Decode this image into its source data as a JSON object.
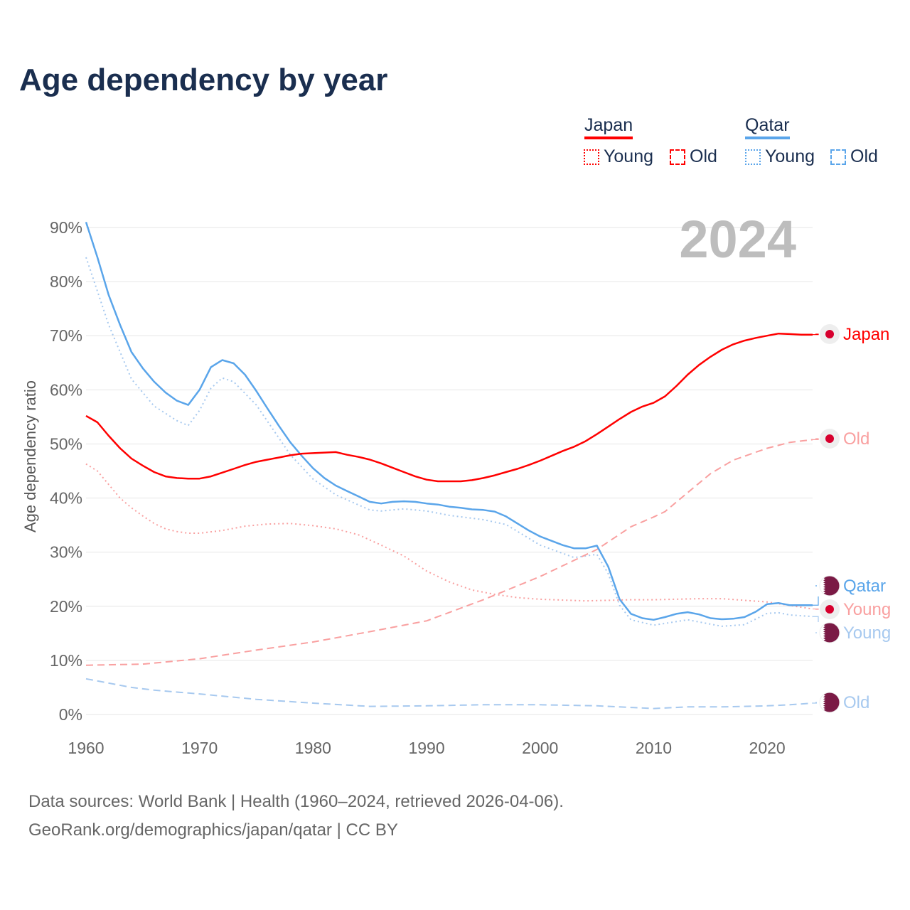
{
  "title": "Age dependency by year",
  "legend": {
    "groups": [
      {
        "country": "Japan",
        "color": "#ff0000",
        "items": [
          "Young",
          "Old"
        ]
      },
      {
        "country": "Qatar",
        "color": "#5aa5ea",
        "items": [
          "Young",
          "Old"
        ]
      }
    ]
  },
  "footer": {
    "line1": "Data sources: World Bank | Health (1960–2024, retrieved 2026-04-06).",
    "line2": "GeoRank.org/demographics/japan/qatar | CC BY"
  },
  "chart_data": {
    "type": "line",
    "title": "Age dependency by year",
    "ylabel": "Age dependency ratio",
    "xlabel": "",
    "year_label": "2024",
    "xlim": [
      1960,
      2024
    ],
    "ylim": [
      0,
      90
    ],
    "x_ticks": [
      "1960",
      "1970",
      "1980",
      "1990",
      "2000",
      "2010",
      "2020"
    ],
    "y_ticks": [
      "0%",
      "10%",
      "20%",
      "30%",
      "40%",
      "50%",
      "60%",
      "70%",
      "80%",
      "90%"
    ],
    "grid": true,
    "series": [
      {
        "name": "Japan",
        "end_label": "Japan",
        "country": "Japan",
        "color": "#ff0000",
        "style": "solid",
        "x": [
          1960,
          1961,
          1962,
          1963,
          1964,
          1965,
          1966,
          1967,
          1968,
          1969,
          1970,
          1971,
          1972,
          1973,
          1974,
          1975,
          1976,
          1977,
          1978,
          1979,
          1980,
          1981,
          1982,
          1983,
          1984,
          1985,
          1986,
          1987,
          1988,
          1989,
          1990,
          1991,
          1992,
          1993,
          1994,
          1995,
          1996,
          1997,
          1998,
          1999,
          2000,
          2001,
          2002,
          2003,
          2004,
          2005,
          2006,
          2007,
          2008,
          2009,
          2010,
          2011,
          2012,
          2013,
          2014,
          2015,
          2016,
          2017,
          2018,
          2019,
          2020,
          2021,
          2022,
          2023,
          2024
        ],
        "y": [
          55.2,
          54,
          51.5,
          49.2,
          47.3,
          46,
          44.8,
          44,
          43.7,
          43.6,
          43.6,
          44,
          44.7,
          45.4,
          46.1,
          46.7,
          47.1,
          47.5,
          47.9,
          48.2,
          48.3,
          48.4,
          48.5,
          48,
          47.6,
          47.1,
          46.4,
          45.6,
          44.8,
          44,
          43.4,
          43.1,
          43.1,
          43.1,
          43.3,
          43.7,
          44.2,
          44.8,
          45.4,
          46.1,
          46.9,
          47.8,
          48.7,
          49.5,
          50.5,
          51.8,
          53.2,
          54.6,
          55.9,
          56.9,
          57.6,
          58.8,
          60.7,
          62.8,
          64.6,
          66.1,
          67.4,
          68.4,
          69.1,
          69.6,
          70,
          70.4,
          70.3,
          70.2,
          70.2
        ]
      },
      {
        "name": "Japan Old",
        "end_label": "Old",
        "country": "Japan",
        "color": "#f9a0a0",
        "style": "dashed",
        "x": [
          1960,
          1965,
          1970,
          1975,
          1980,
          1985,
          1990,
          1995,
          2000,
          2005,
          2008,
          2010,
          2011,
          2013,
          2015,
          2017,
          2020,
          2022,
          2024
        ],
        "y": [
          9.1,
          9.3,
          10.3,
          11.9,
          13.4,
          15.3,
          17.3,
          21.2,
          25.5,
          30.5,
          34.7,
          36.5,
          37.5,
          41,
          44.5,
          47,
          49.2,
          50.3,
          50.8
        ]
      },
      {
        "name": "Japan Young",
        "end_label": "Young",
        "country": "Japan",
        "color": "#f9a0a0",
        "style": "dotted",
        "x": [
          1960,
          1961,
          1962,
          1963,
          1964,
          1965,
          1966,
          1967,
          1968,
          1969,
          1970,
          1972,
          1974,
          1976,
          1978,
          1980,
          1982,
          1984,
          1986,
          1988,
          1990,
          1992,
          1994,
          1996,
          1998,
          2000,
          2004,
          2008,
          2010,
          2014,
          2016,
          2020,
          2024
        ],
        "y": [
          46.3,
          45,
          42.5,
          40,
          38.2,
          36.7,
          35.3,
          34.3,
          33.8,
          33.5,
          33.5,
          34,
          34.8,
          35.2,
          35.3,
          34.9,
          34.3,
          33.2,
          31.3,
          29.3,
          26.5,
          24.5,
          23,
          22.2,
          21.6,
          21.3,
          21,
          21.2,
          21.2,
          21.4,
          21.4,
          20.8,
          19.5
        ]
      },
      {
        "name": "Qatar",
        "end_label": "Qatar",
        "country": "Qatar",
        "color": "#5aa5ea",
        "style": "solid",
        "x": [
          1960,
          1961,
          1962,
          1963,
          1964,
          1965,
          1966,
          1967,
          1968,
          1969,
          1970,
          1971,
          1972,
          1973,
          1974,
          1975,
          1976,
          1977,
          1978,
          1979,
          1980,
          1981,
          1982,
          1983,
          1984,
          1985,
          1986,
          1987,
          1988,
          1989,
          1990,
          1991,
          1992,
          1993,
          1994,
          1995,
          1996,
          1997,
          1998,
          1999,
          2000,
          2001,
          2002,
          2003,
          2004,
          2005,
          2006,
          2007,
          2008,
          2009,
          2010,
          2011,
          2012,
          2013,
          2014,
          2015,
          2016,
          2017,
          2018,
          2019,
          2020,
          2021,
          2022,
          2023,
          2024
        ],
        "y": [
          91,
          84.5,
          77.5,
          72,
          67,
          64,
          61.5,
          59.5,
          58,
          57.2,
          60,
          64.2,
          65.5,
          64.9,
          62.8,
          59.8,
          56.5,
          53.3,
          50.3,
          47.8,
          45.5,
          43.7,
          42.3,
          41.3,
          40.3,
          39.3,
          39,
          39.3,
          39.4,
          39.3,
          39,
          38.8,
          38.4,
          38.2,
          37.9,
          37.8,
          37.5,
          36.6,
          35.3,
          34,
          32.9,
          32.1,
          31.3,
          30.7,
          30.7,
          31.2,
          27.3,
          21.3,
          18.6,
          17.8,
          17.5,
          18,
          18.6,
          18.9,
          18.5,
          17.8,
          17.6,
          17.7,
          18,
          19,
          20.4,
          20.6,
          20.2,
          20.2,
          20.2
        ]
      },
      {
        "name": "Qatar Young",
        "end_label": "Young",
        "country": "Qatar",
        "color": "#a7c9ef",
        "style": "dotted",
        "x": [
          1960,
          1962,
          1964,
          1966,
          1968,
          1969,
          1970,
          1971,
          1972,
          1973,
          1975,
          1978,
          1980,
          1982,
          1985,
          1986,
          1988,
          1990,
          1992,
          1995,
          1997,
          2000,
          2003,
          2005,
          2006,
          2007,
          2008,
          2010,
          2013,
          2016,
          2018,
          2020,
          2021,
          2022,
          2024
        ],
        "y": [
          84.5,
          72,
          62,
          57,
          54.3,
          53.4,
          56.2,
          60.3,
          62.2,
          61.5,
          57.2,
          48,
          43.5,
          40.6,
          37.8,
          37.6,
          38,
          37.6,
          36.8,
          36,
          35.1,
          31.3,
          29,
          29.6,
          26,
          20.2,
          17.5,
          16.5,
          17.5,
          16.3,
          16.6,
          18.7,
          18.8,
          18.4,
          18.1
        ]
      },
      {
        "name": "Qatar Old",
        "end_label": "Old",
        "country": "Qatar",
        "color": "#a7c9ef",
        "style": "dashed",
        "x": [
          1960,
          1964,
          1966,
          1970,
          1975,
          1980,
          1985,
          1990,
          1995,
          2000,
          2005,
          2008,
          2010,
          2013,
          2016,
          2020,
          2022,
          2024
        ],
        "y": [
          6.6,
          5,
          4.5,
          3.8,
          2.8,
          2.1,
          1.5,
          1.6,
          1.8,
          1.8,
          1.6,
          1.3,
          1.1,
          1.4,
          1.4,
          1.6,
          1.8,
          2.1
        ]
      }
    ]
  }
}
